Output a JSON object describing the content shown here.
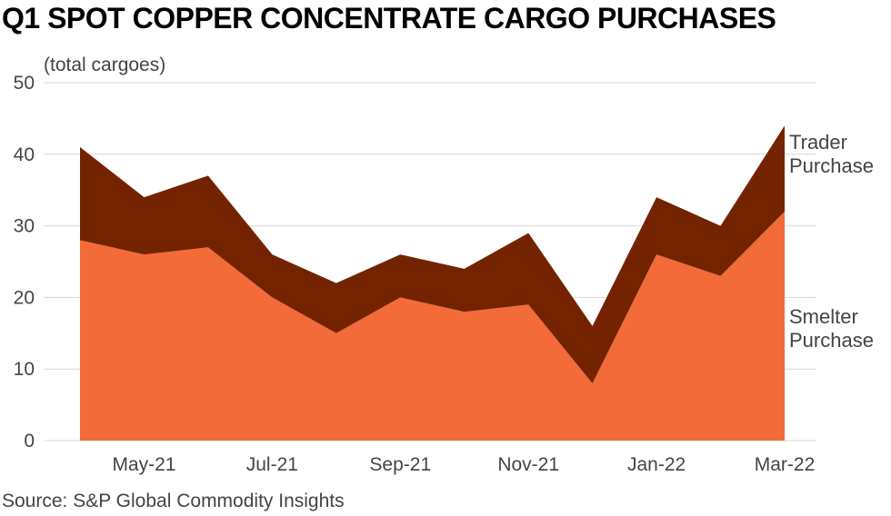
{
  "chart_data": {
    "type": "area",
    "stacked": true,
    "title": "Q1 SPOT COPPER CONCENTRATE CARGO PURCHASES",
    "ylabel": "(total cargoes)",
    "ylim": [
      0,
      50
    ],
    "yticks": [
      0,
      10,
      20,
      30,
      40,
      50
    ],
    "x": [
      "Apr-21",
      "May-21",
      "Jun-21",
      "Jul-21",
      "Aug-21",
      "Sep-21",
      "Oct-21",
      "Nov-21",
      "Dec-21",
      "Jan-22",
      "Feb-22",
      "Mar-22"
    ],
    "xtick_labels": [
      "May-21",
      "Jul-21",
      "Sep-21",
      "Nov-21",
      "Jan-22",
      "Mar-22"
    ],
    "series": [
      {
        "name": "Smelter Purchase",
        "values": [
          28,
          26,
          27,
          20,
          15,
          20,
          18,
          19,
          8,
          26,
          23,
          32
        ],
        "color": "#f26b38"
      },
      {
        "name": "Trader Purchase",
        "values": [
          13,
          8,
          10,
          6,
          7,
          6,
          6,
          10,
          8,
          8,
          7,
          12
        ],
        "color": "#742300"
      }
    ],
    "series_labels": {
      "trader": [
        "Trader",
        "Purchase"
      ],
      "smelter": [
        "Smelter",
        "Purchase"
      ]
    },
    "grid": true,
    "source": "Source: S&P Global Commodity Insights"
  }
}
